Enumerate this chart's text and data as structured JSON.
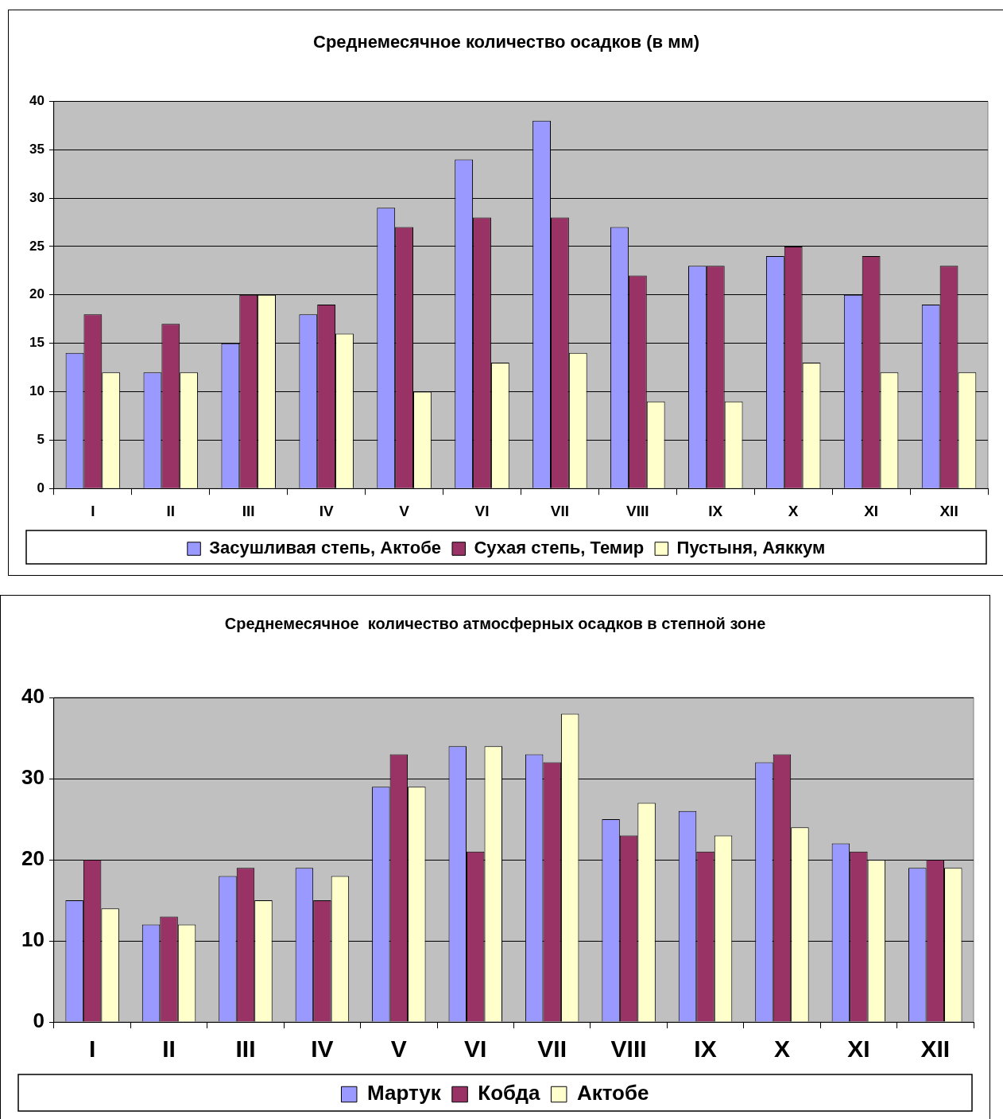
{
  "chart_data": [
    {
      "type": "bar",
      "title": "Среднемесячное количество осадков (в мм)",
      "categories": [
        "I",
        "II",
        "III",
        "IV",
        "V",
        "VI",
        "VII",
        "VIII",
        "IX",
        "X",
        "XI",
        "XII"
      ],
      "series": [
        {
          "name": "Засушливая степь, Актобе",
          "color": "#9999ff",
          "values": [
            14,
            12,
            15,
            18,
            29,
            34,
            38,
            27,
            23,
            24,
            20,
            19
          ]
        },
        {
          "name": "Сухая степь, Темир",
          "color": "#993366",
          "values": [
            18,
            17,
            20,
            19,
            27,
            28,
            28,
            22,
            23,
            25,
            24,
            23
          ]
        },
        {
          "name": "Пустыня, Аяккум",
          "color": "#ffffcc",
          "values": [
            12,
            12,
            20,
            16,
            10,
            13,
            14,
            9,
            9,
            13,
            12,
            12
          ]
        }
      ],
      "ylim": [
        0,
        40
      ],
      "yticks": [
        0,
        5,
        10,
        15,
        20,
        25,
        30,
        35,
        40
      ],
      "grid": "y",
      "legend": "bottom"
    },
    {
      "type": "bar",
      "title": "Среднемесячное  количество атмосферных осадков в степной зоне",
      "categories": [
        "I",
        "II",
        "III",
        "IV",
        "V",
        "VI",
        "VII",
        "VIII",
        "IX",
        "X",
        "XI",
        "XII"
      ],
      "series": [
        {
          "name": "Мартук",
          "color": "#9999ff",
          "values": [
            15,
            12,
            18,
            19,
            29,
            34,
            33,
            25,
            26,
            32,
            22,
            19
          ]
        },
        {
          "name": "Кобда",
          "color": "#993366",
          "values": [
            20,
            13,
            19,
            15,
            33,
            21,
            32,
            23,
            21,
            33,
            21,
            20
          ]
        },
        {
          "name": "Актобе",
          "color": "#ffffcc",
          "values": [
            14,
            12,
            15,
            18,
            29,
            34,
            38,
            27,
            23,
            24,
            20,
            19
          ]
        }
      ],
      "ylim": [
        0,
        40
      ],
      "yticks": [
        0,
        10,
        20,
        30,
        40
      ],
      "grid": "y",
      "legend": "bottom"
    }
  ]
}
